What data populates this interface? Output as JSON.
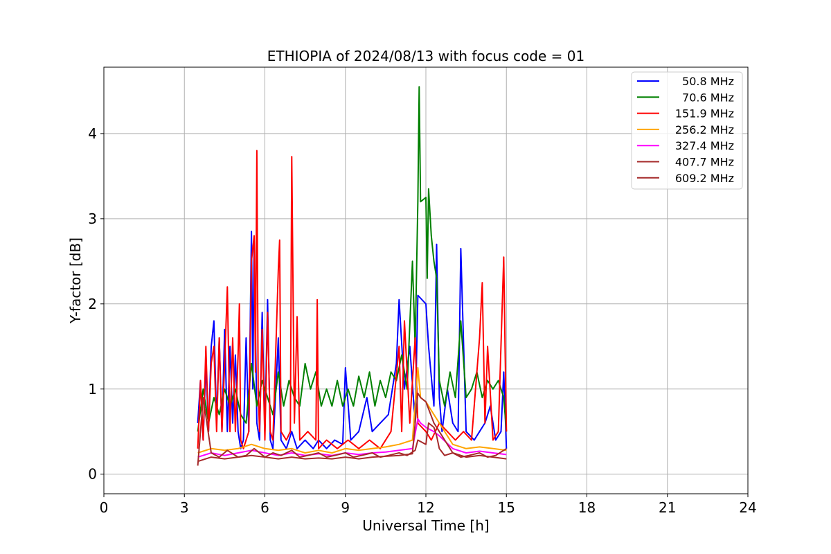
{
  "chart_data": {
    "type": "line",
    "title": "ETHIOPIA of 2024/08/13 with focus code = 01",
    "xlabel": "Universal Time [h]",
    "ylabel": "Y-factor [dB]",
    "xlim": [
      0,
      24
    ],
    "ylim": [
      -0.23,
      4.78
    ],
    "xticks": [
      0,
      3,
      6,
      9,
      12,
      15,
      18,
      21,
      24
    ],
    "yticks": [
      0,
      1,
      2,
      3,
      4
    ],
    "xtick_labels": [
      "0",
      "3",
      "6",
      "9",
      "12",
      "15",
      "18",
      "21",
      "24"
    ],
    "ytick_labels": [
      "0",
      "1",
      "2",
      "3",
      "4"
    ],
    "grid": true,
    "legend_position": "top-right",
    "series": [
      {
        "name": "50.8 MHz",
        "color": "#0000ff",
        "x": [
          3.5,
          3.6,
          3.7,
          3.8,
          3.9,
          4.0,
          4.1,
          4.2,
          4.3,
          4.4,
          4.5,
          4.6,
          4.7,
          4.8,
          4.9,
          5.0,
          5.1,
          5.2,
          5.3,
          5.4,
          5.5,
          5.55,
          5.6,
          5.7,
          5.8,
          5.9,
          6.0,
          6.1,
          6.2,
          6.3,
          6.5,
          6.6,
          6.8,
          7.0,
          7.2,
          7.5,
          7.8,
          8.0,
          8.3,
          8.6,
          8.9,
          9.0,
          9.2,
          9.5,
          9.8,
          10.0,
          10.3,
          10.6,
          10.9,
          11.0,
          11.2,
          11.4,
          11.6,
          11.7,
          12.0,
          12.1,
          12.3,
          12.4,
          12.5,
          12.6,
          12.8,
          13.0,
          13.2,
          13.3,
          13.5,
          13.8,
          14.0,
          14.2,
          14.4,
          14.6,
          14.8,
          14.9,
          15.0
        ],
        "y": [
          0.6,
          1.1,
          0.4,
          1.3,
          0.5,
          1.5,
          1.8,
          0.6,
          1.6,
          0.5,
          1.7,
          0.5,
          1.5,
          0.6,
          1.4,
          0.5,
          0.3,
          0.4,
          1.6,
          0.5,
          2.85,
          1.0,
          2.75,
          0.6,
          0.4,
          1.9,
          0.5,
          2.05,
          0.4,
          0.3,
          1.6,
          0.4,
          0.3,
          0.5,
          0.3,
          0.4,
          0.3,
          0.4,
          0.3,
          0.4,
          0.35,
          1.25,
          0.4,
          0.5,
          0.9,
          0.5,
          0.6,
          0.7,
          1.3,
          2.05,
          1.0,
          1.5,
          0.6,
          2.1,
          2.0,
          1.5,
          0.8,
          2.7,
          0.9,
          0.5,
          1.0,
          0.6,
          0.5,
          2.65,
          0.5,
          0.4,
          0.5,
          0.6,
          0.8,
          0.4,
          0.5,
          1.2,
          0.3
        ]
      },
      {
        "name": "70.6 MHz",
        "color": "#008000",
        "x": [
          3.5,
          3.7,
          3.9,
          4.1,
          4.3,
          4.5,
          4.7,
          4.9,
          5.1,
          5.3,
          5.5,
          5.7,
          5.9,
          6.1,
          6.3,
          6.5,
          6.7,
          6.9,
          7.1,
          7.3,
          7.5,
          7.7,
          7.9,
          8.1,
          8.3,
          8.5,
          8.7,
          8.9,
          9.1,
          9.3,
          9.5,
          9.7,
          9.9,
          10.1,
          10.3,
          10.5,
          10.7,
          10.9,
          11.1,
          11.3,
          11.5,
          11.6,
          11.7,
          11.75,
          11.8,
          12.0,
          12.05,
          12.1,
          12.2,
          12.3,
          12.4,
          12.5,
          12.7,
          12.9,
          13.1,
          13.3,
          13.5,
          13.7,
          13.9,
          14.1,
          14.3,
          14.5,
          14.7,
          14.9,
          15.0
        ],
        "y": [
          0.5,
          1.0,
          0.6,
          0.9,
          0.7,
          1.0,
          0.8,
          1.0,
          0.7,
          0.6,
          1.3,
          0.8,
          1.1,
          0.9,
          0.7,
          1.2,
          0.8,
          1.1,
          0.9,
          0.8,
          1.3,
          1.0,
          1.2,
          0.8,
          1.0,
          0.8,
          1.1,
          0.8,
          1.0,
          0.8,
          1.15,
          0.9,
          1.2,
          0.8,
          1.1,
          0.9,
          1.2,
          1.1,
          1.4,
          1.0,
          2.5,
          1.5,
          3.2,
          4.55,
          3.2,
          3.25,
          2.3,
          3.35,
          2.8,
          2.5,
          2.3,
          1.1,
          0.8,
          1.2,
          0.9,
          1.8,
          0.9,
          1.0,
          1.2,
          0.9,
          1.1,
          1.0,
          1.1,
          0.9,
          0.5
        ]
      },
      {
        "name": "151.9 MHz",
        "color": "#ff0000",
        "x": [
          3.5,
          3.6,
          3.7,
          3.8,
          3.9,
          4.0,
          4.1,
          4.2,
          4.3,
          4.4,
          4.5,
          4.6,
          4.7,
          4.8,
          4.9,
          5.0,
          5.05,
          5.1,
          5.2,
          5.4,
          5.5,
          5.6,
          5.65,
          5.7,
          5.75,
          5.8,
          5.9,
          6.0,
          6.1,
          6.2,
          6.3,
          6.5,
          6.55,
          6.6,
          6.8,
          6.95,
          7.0,
          7.1,
          7.2,
          7.3,
          7.6,
          7.9,
          7.95,
          8.0,
          8.3,
          8.7,
          9.1,
          9.5,
          9.9,
          10.3,
          10.7,
          11.0,
          11.1,
          11.2,
          11.4,
          11.6,
          11.7,
          12.0,
          12.2,
          12.5,
          12.8,
          13.1,
          13.4,
          13.7,
          14.0,
          14.1,
          14.2,
          14.3,
          14.5,
          14.7,
          14.9,
          14.95,
          15.0
        ],
        "y": [
          0.3,
          1.1,
          0.4,
          1.5,
          0.5,
          1.3,
          1.5,
          0.5,
          1.6,
          0.5,
          1.3,
          2.2,
          0.5,
          1.6,
          0.5,
          1.4,
          2.0,
          0.4,
          0.3,
          0.5,
          2.5,
          2.8,
          1.2,
          3.8,
          1.0,
          0.5,
          1.7,
          0.4,
          1.9,
          0.5,
          0.4,
          2.4,
          2.75,
          0.5,
          0.4,
          0.5,
          3.73,
          0.6,
          1.85,
          0.4,
          0.5,
          0.4,
          2.05,
          0.3,
          0.4,
          0.3,
          0.4,
          0.3,
          0.4,
          0.3,
          0.5,
          1.5,
          0.5,
          1.8,
          0.6,
          1.6,
          0.6,
          0.5,
          0.4,
          0.6,
          0.5,
          0.4,
          0.5,
          0.4,
          1.6,
          2.25,
          0.6,
          1.5,
          0.4,
          0.5,
          2.55,
          1.5,
          0.5
        ]
      },
      {
        "name": "256.2 MHz",
        "color": "#ffa500",
        "x": [
          3.5,
          4.0,
          4.5,
          5.0,
          5.5,
          6.0,
          6.5,
          7.0,
          7.5,
          8.0,
          8.5,
          9.0,
          9.5,
          10.0,
          10.5,
          11.0,
          11.5,
          11.7,
          11.8,
          12.0,
          12.3,
          12.5,
          13.0,
          13.5,
          14.0,
          14.5,
          15.0
        ],
        "y": [
          0.25,
          0.3,
          0.28,
          0.3,
          0.35,
          0.3,
          0.28,
          0.3,
          0.25,
          0.28,
          0.25,
          0.3,
          0.28,
          0.3,
          0.32,
          0.35,
          0.4,
          1.25,
          0.9,
          0.85,
          0.7,
          0.6,
          0.35,
          0.3,
          0.32,
          0.3,
          0.28
        ]
      },
      {
        "name": "327.4 MHz",
        "color": "#ff00ff",
        "x": [
          3.5,
          4.0,
          4.5,
          5.0,
          5.5,
          6.0,
          6.5,
          7.0,
          7.5,
          8.0,
          8.5,
          9.0,
          9.5,
          10.0,
          10.5,
          11.0,
          11.5,
          11.7,
          11.8,
          12.0,
          12.3,
          12.5,
          13.0,
          13.5,
          14.0,
          14.5,
          15.0
        ],
        "y": [
          0.2,
          0.25,
          0.22,
          0.25,
          0.28,
          0.25,
          0.22,
          0.25,
          0.22,
          0.24,
          0.22,
          0.25,
          0.23,
          0.25,
          0.26,
          0.28,
          0.3,
          0.65,
          0.6,
          0.55,
          0.5,
          0.45,
          0.3,
          0.25,
          0.27,
          0.25,
          0.23
        ]
      },
      {
        "name": "407.7 MHz",
        "color": "#a52a2a",
        "x": [
          3.5,
          4.0,
          4.5,
          5.0,
          5.5,
          6.0,
          6.5,
          7.0,
          7.5,
          8.0,
          8.5,
          9.0,
          9.5,
          10.0,
          10.5,
          11.0,
          11.5,
          11.7,
          11.8,
          12.0,
          12.3,
          12.5,
          13.0,
          13.5,
          14.0,
          14.5,
          15.0
        ],
        "y": [
          0.15,
          0.2,
          0.18,
          0.2,
          0.22,
          0.2,
          0.18,
          0.2,
          0.18,
          0.19,
          0.18,
          0.2,
          0.18,
          0.2,
          0.21,
          0.22,
          0.24,
          0.95,
          0.9,
          0.85,
          0.6,
          0.5,
          0.25,
          0.2,
          0.22,
          0.2,
          0.18
        ]
      },
      {
        "name": "609.2 MHz",
        "color": "#a52a2a",
        "x": [
          3.5,
          3.7,
          4.0,
          4.3,
          4.6,
          5.0,
          5.3,
          5.6,
          6.0,
          6.3,
          6.6,
          7.0,
          7.3,
          7.6,
          8.0,
          8.3,
          8.6,
          9.0,
          9.3,
          9.6,
          10.0,
          10.3,
          10.6,
          11.0,
          11.3,
          11.6,
          11.7,
          12.0,
          12.1,
          12.3,
          12.4,
          12.5,
          12.7,
          13.0,
          13.3,
          13.6,
          14.0,
          14.3,
          14.6,
          15.0
        ],
        "y": [
          0.1,
          0.9,
          0.25,
          0.2,
          0.28,
          0.2,
          0.22,
          0.3,
          0.2,
          0.25,
          0.22,
          0.28,
          0.2,
          0.22,
          0.25,
          0.2,
          0.22,
          0.25,
          0.2,
          0.22,
          0.25,
          0.2,
          0.22,
          0.25,
          0.22,
          0.28,
          0.4,
          0.35,
          0.6,
          0.55,
          0.45,
          0.3,
          0.22,
          0.25,
          0.2,
          0.22,
          0.25,
          0.2,
          0.22,
          0.3
        ]
      }
    ]
  }
}
